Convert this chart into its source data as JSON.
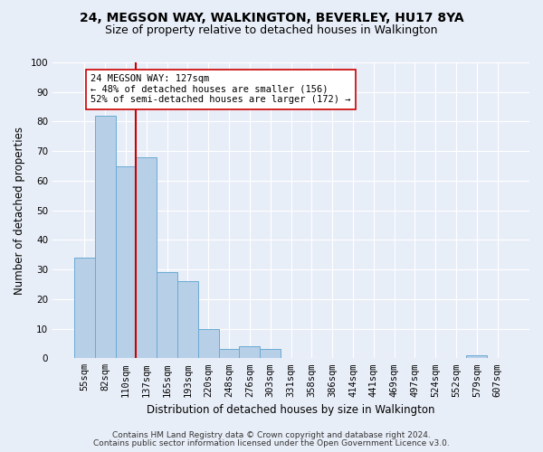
{
  "title": "24, MEGSON WAY, WALKINGTON, BEVERLEY, HU17 8YA",
  "subtitle": "Size of property relative to detached houses in Walkington",
  "xlabel": "Distribution of detached houses by size in Walkington",
  "ylabel": "Number of detached properties",
  "bar_labels": [
    "55sqm",
    "82sqm",
    "110sqm",
    "137sqm",
    "165sqm",
    "193sqm",
    "220sqm",
    "248sqm",
    "276sqm",
    "303sqm",
    "331sqm",
    "358sqm",
    "386sqm",
    "414sqm",
    "441sqm",
    "469sqm",
    "497sqm",
    "524sqm",
    "552sqm",
    "579sqm",
    "607sqm"
  ],
  "bar_heights": [
    34,
    82,
    65,
    68,
    29,
    26,
    10,
    3,
    4,
    3,
    0,
    0,
    0,
    0,
    0,
    0,
    0,
    0,
    0,
    1,
    0
  ],
  "bar_color": "#b8cfe8",
  "bar_edge_color": "#6aaad4",
  "background_color": "#e8eef8",
  "grid_color": "#ffffff",
  "vline_color": "#cc0000",
  "vline_x_index": 2.5,
  "annotation_text": "24 MEGSON WAY: 127sqm\n← 48% of detached houses are smaller (156)\n52% of semi-detached houses are larger (172) →",
  "annotation_box_facecolor": "#ffffff",
  "annotation_box_edgecolor": "#cc0000",
  "ylim": [
    0,
    100
  ],
  "yticks": [
    0,
    10,
    20,
    30,
    40,
    50,
    60,
    70,
    80,
    90,
    100
  ],
  "footnote1": "Contains HM Land Registry data © Crown copyright and database right 2024.",
  "footnote2": "Contains public sector information licensed under the Open Government Licence v3.0.",
  "title_fontsize": 10,
  "subtitle_fontsize": 9,
  "xlabel_fontsize": 8.5,
  "ylabel_fontsize": 8.5,
  "tick_fontsize": 7.5,
  "annotation_fontsize": 7.5,
  "footnote_fontsize": 6.5
}
